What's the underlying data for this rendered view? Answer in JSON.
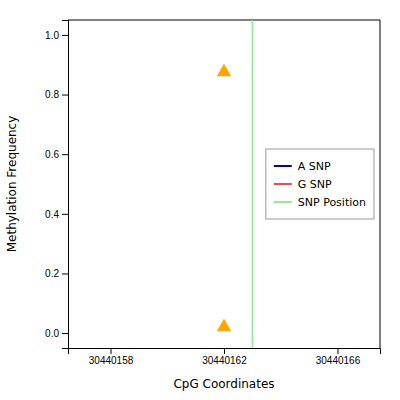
{
  "chart_data": {
    "type": "scatter",
    "title": "",
    "xlabel": "CpG Coordinates",
    "ylabel": "Methylation Frequency",
    "series": [
      {
        "name": "A SNP",
        "type": "line",
        "color": "#0000CD",
        "x": [],
        "values": []
      },
      {
        "name": "G SNP",
        "type": "line",
        "color": "#FF4444",
        "x": [],
        "values": []
      },
      {
        "name": "SNP Position",
        "type": "vline",
        "color": "#90EE90",
        "x": [
          30440163
        ]
      },
      {
        "type": "scatter",
        "color": "#FFA500",
        "marker": "triangle",
        "x": [
          30440162,
          30440162
        ],
        "values": [
          0.875,
          0.02
        ]
      }
    ],
    "xlim": [
      30440156.5,
      30440167.5
    ],
    "ylim": [
      -0.05,
      1.05
    ],
    "xticks": [
      30440158,
      30440162,
      30440166
    ],
    "yticks": [
      {
        "value": 0.0,
        "label": "0.0"
      },
      0.2,
      0.4,
      0.6,
      0.8,
      {
        "value": 1.0,
        "label": "1.0"
      }
    ],
    "grid": false,
    "legend": "right"
  }
}
